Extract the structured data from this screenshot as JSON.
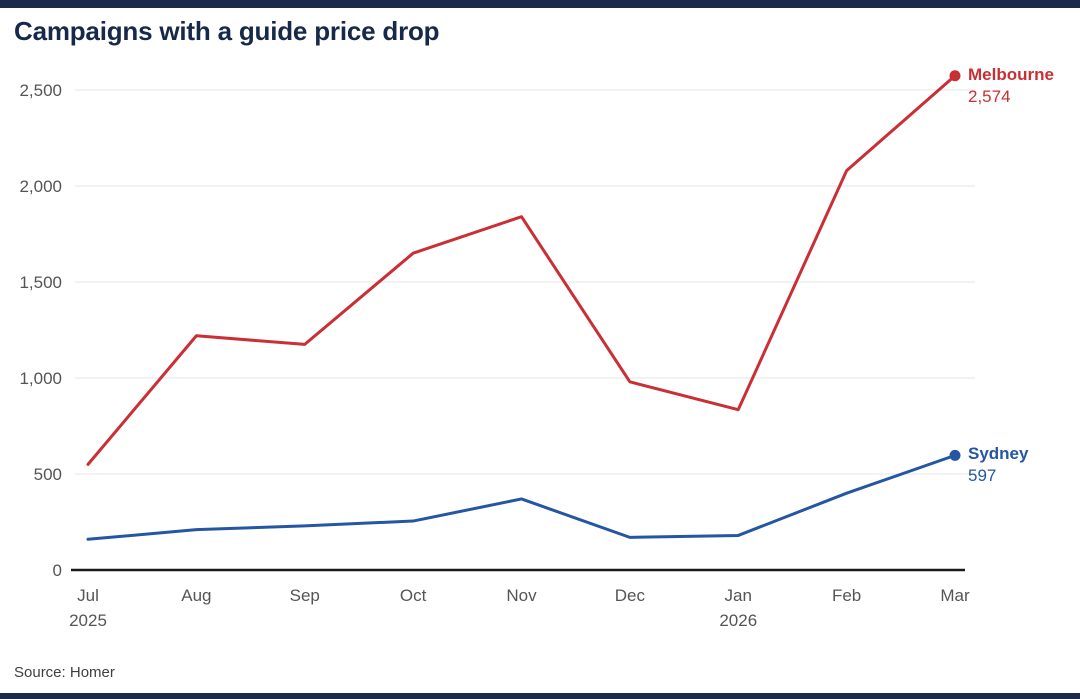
{
  "page": {
    "title": "Campaigns with a guide price drop",
    "source": "Source: Homer",
    "accent_bar_color": "#1b2a4b"
  },
  "chart_data": {
    "type": "line",
    "title": "Campaigns with a guide price drop",
    "categories": [
      "Jul",
      "Aug",
      "Sep",
      "Oct",
      "Nov",
      "Dec",
      "Jan",
      "Feb",
      "Mar"
    ],
    "x_sub_labels": [
      "2025",
      "",
      "",
      "",
      "",
      "",
      "2026",
      "",
      ""
    ],
    "series": [
      {
        "name": "Melbourne",
        "color": "#c92f34",
        "values": [
          550,
          1220,
          1175,
          1650,
          1840,
          980,
          835,
          2080,
          2574
        ],
        "end_label": "2,574"
      },
      {
        "name": "Sydney",
        "color": "#2456a4",
        "values": [
          160,
          210,
          230,
          255,
          370,
          170,
          180,
          400,
          597
        ],
        "end_label": "597"
      }
    ],
    "y_axis": {
      "max": 2500,
      "ticks": [
        0,
        500,
        1000,
        1500,
        2000,
        2500
      ],
      "labels": [
        "0",
        "500",
        "1,000",
        "1,500",
        "2,000",
        "2,500"
      ]
    },
    "ylim": [
      0,
      2600
    ],
    "grid": true,
    "legend_position": "end-of-line"
  }
}
